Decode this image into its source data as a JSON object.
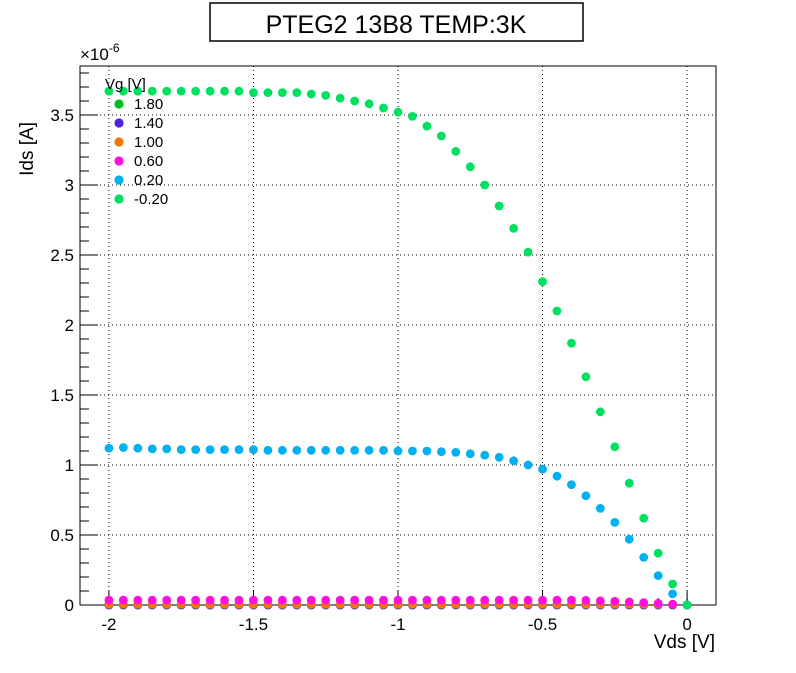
{
  "chart_data": {
    "type": "scatter",
    "title": "PTEG2 13B8 TEMP:3K",
    "xlabel": "Vds [V]",
    "ylabel": "Ids [A]",
    "y_exponent_label": "×10",
    "y_exponent_sup": "-6",
    "xlim": [
      -2.1,
      0.1
    ],
    "ylim": [
      0,
      3.85
    ],
    "x_ticks": [
      -2,
      -1.5,
      -1,
      -0.5,
      0
    ],
    "x_tick_labels": [
      "-2",
      "-1.5",
      "-1",
      "-0.5",
      "0"
    ],
    "y_ticks": [
      0,
      0.5,
      1,
      1.5,
      2,
      2.5,
      3,
      3.5
    ],
    "y_tick_labels": [
      "0",
      "0.5",
      "1",
      "1.5",
      "2",
      "2.5",
      "3",
      "3.5"
    ],
    "grid": true,
    "legend_title": "Vg [V]",
    "legend_position": "top-left",
    "x": [
      -2.0,
      -1.95,
      -1.9,
      -1.85,
      -1.8,
      -1.75,
      -1.7,
      -1.65,
      -1.6,
      -1.55,
      -1.5,
      -1.45,
      -1.4,
      -1.35,
      -1.3,
      -1.25,
      -1.2,
      -1.15,
      -1.1,
      -1.05,
      -1.0,
      -0.95,
      -0.9,
      -0.85,
      -0.8,
      -0.75,
      -0.7,
      -0.65,
      -0.6,
      -0.55,
      -0.5,
      -0.45,
      -0.4,
      -0.35,
      -0.3,
      -0.25,
      -0.2,
      -0.15,
      -0.1,
      -0.05,
      0.0
    ],
    "series": [
      {
        "name": "1.80",
        "color": "#00c020",
        "values": [
          0,
          0,
          0,
          0,
          0,
          0,
          0,
          0,
          0,
          0,
          0,
          0,
          0,
          0,
          0,
          0,
          0,
          0,
          0,
          0,
          0,
          0,
          0,
          0,
          0,
          0,
          0,
          0,
          0,
          0,
          0,
          0,
          0,
          0,
          0,
          0,
          0,
          0,
          0,
          0,
          0
        ]
      },
      {
        "name": "1.40",
        "color": "#5020e0",
        "values": [
          0,
          0,
          0,
          0,
          0,
          0,
          0,
          0,
          0,
          0,
          0,
          0,
          0,
          0,
          0,
          0,
          0,
          0,
          0,
          0,
          0,
          0,
          0,
          0,
          0,
          0,
          0,
          0,
          0,
          0,
          0,
          0,
          0,
          0,
          0,
          0,
          0,
          0,
          0,
          0,
          0
        ]
      },
      {
        "name": "1.00",
        "color": "#f07800",
        "values": [
          0.005,
          0.005,
          0.005,
          0.005,
          0.005,
          0.005,
          0.005,
          0.005,
          0.005,
          0.005,
          0.005,
          0.005,
          0.005,
          0.005,
          0.005,
          0.005,
          0.005,
          0.005,
          0.005,
          0.005,
          0.005,
          0.005,
          0.005,
          0.005,
          0.005,
          0.005,
          0.005,
          0.005,
          0.005,
          0.005,
          0.005,
          0.005,
          0.005,
          0.005,
          0.005,
          0.005,
          0.005,
          0.005,
          0.005,
          0.005,
          0.0
        ]
      },
      {
        "name": "0.60",
        "color": "#ff10e0",
        "values": [
          0.035,
          0.035,
          0.035,
          0.035,
          0.035,
          0.035,
          0.035,
          0.035,
          0.035,
          0.035,
          0.035,
          0.035,
          0.035,
          0.035,
          0.035,
          0.035,
          0.035,
          0.035,
          0.035,
          0.035,
          0.035,
          0.035,
          0.035,
          0.035,
          0.035,
          0.035,
          0.035,
          0.035,
          0.035,
          0.035,
          0.035,
          0.035,
          0.035,
          0.033,
          0.03,
          0.027,
          0.022,
          0.017,
          0.012,
          0.006,
          0.0
        ]
      },
      {
        "name": "0.20",
        "color": "#00b0f0",
        "values": [
          1.12,
          1.125,
          1.12,
          1.115,
          1.115,
          1.11,
          1.11,
          1.11,
          1.11,
          1.11,
          1.11,
          1.105,
          1.105,
          1.105,
          1.105,
          1.105,
          1.105,
          1.105,
          1.105,
          1.105,
          1.1,
          1.1,
          1.1,
          1.095,
          1.09,
          1.08,
          1.07,
          1.055,
          1.03,
          1.0,
          0.97,
          0.92,
          0.86,
          0.78,
          0.69,
          0.59,
          0.47,
          0.34,
          0.21,
          0.08,
          0.0
        ]
      },
      {
        "name": "-0.20",
        "color": "#00e060",
        "values": [
          3.67,
          3.67,
          3.67,
          3.67,
          3.67,
          3.67,
          3.67,
          3.67,
          3.67,
          3.67,
          3.66,
          3.66,
          3.66,
          3.66,
          3.65,
          3.64,
          3.62,
          3.6,
          3.58,
          3.55,
          3.52,
          3.49,
          3.42,
          3.35,
          3.24,
          3.13,
          3.0,
          2.85,
          2.69,
          2.52,
          2.31,
          2.1,
          1.87,
          1.63,
          1.38,
          1.13,
          0.87,
          0.62,
          0.37,
          0.15,
          0.0
        ]
      }
    ]
  }
}
